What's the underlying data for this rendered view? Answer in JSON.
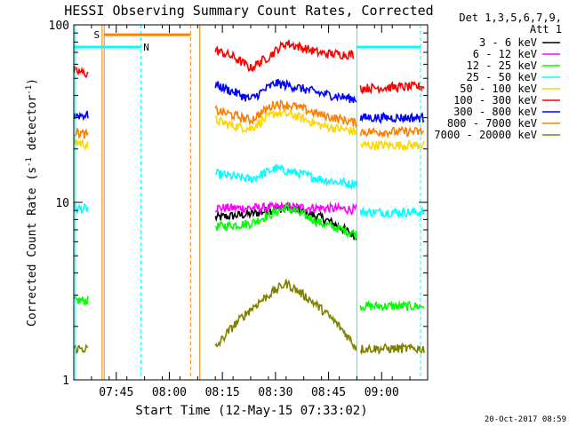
{
  "chart_data": {
    "type": "line",
    "title": "HESSI Observing Summary Count Rates, Corrected",
    "xlabel": "Start Time (12-May-15 07:33:02)",
    "ylabel": "Corrected Count Rate (s⁻¹ detector⁻¹)",
    "ylabel_parts": [
      "Corrected Count Rate (s",
      "-1",
      " detector",
      "-1",
      ")"
    ],
    "yscale": "log",
    "ylim": [
      1,
      100
    ],
    "xlim_minutes": [
      0,
      100
    ],
    "x_ticks": [
      {
        "minute": 12,
        "label": "07:45"
      },
      {
        "minute": 27,
        "label": "08:00"
      },
      {
        "minute": 42,
        "label": "08:15"
      },
      {
        "minute": 57,
        "label": "08:30"
      },
      {
        "minute": 72,
        "label": "08:45"
      },
      {
        "minute": 87,
        "label": "09:00"
      }
    ],
    "y_ticks": [
      {
        "value": 1,
        "label": "1"
      },
      {
        "value": 10,
        "label": "10"
      },
      {
        "value": 100,
        "label": "100"
      }
    ],
    "grid": false,
    "legend": {
      "placement": "right",
      "header": [
        "Det 1,3,5,6,7,9,",
        "Att 1"
      ]
    },
    "series": [
      {
        "name": "3 - 6 keV",
        "color": "#000000",
        "segments": [
          {
            "x": [
              40,
              50,
              60,
              65,
              70,
              80
            ],
            "y": [
              8.2,
              8.6,
              9.4,
              8.8,
              8.2,
              6.4
            ]
          }
        ]
      },
      {
        "name": "6 - 12 keV",
        "color": "#ff00ff",
        "segments": [
          {
            "x": [
              40,
              50,
              60,
              70,
              80
            ],
            "y": [
              9.3,
              9.3,
              9.4,
              9.3,
              9.1
            ]
          }
        ]
      },
      {
        "name": "12 - 25 keV",
        "color": "#00ff00",
        "segments": [
          {
            "x": [
              0,
              4
            ],
            "y": [
              2.8,
              2.8
            ]
          },
          {
            "x": [
              40,
              50,
              60,
              65,
              70,
              80
            ],
            "y": [
              7.3,
              7.6,
              9.3,
              8.5,
              7.6,
              6.6
            ]
          },
          {
            "x": [
              81,
              99
            ],
            "y": [
              2.6,
              2.6
            ]
          }
        ]
      },
      {
        "name": "25 - 50 keV",
        "color": "#00ffff",
        "segments": [
          {
            "x": [
              0,
              4
            ],
            "y": [
              9.2,
              9.2
            ]
          },
          {
            "x": [
              40,
              45,
              50,
              57,
              62,
              70,
              78,
              80
            ],
            "y": [
              14.5,
              14.0,
              13.5,
              15.5,
              14.8,
              13.5,
              12.7,
              13.0
            ]
          },
          {
            "x": [
              81,
              99
            ],
            "y": [
              8.8,
              8.8
            ]
          }
        ]
      },
      {
        "name": "50 - 100 keV",
        "color": "#ffd700",
        "segments": [
          {
            "x": [
              0,
              4
            ],
            "y": [
              22,
              21
            ]
          },
          {
            "x": [
              40,
              45,
              50,
              57,
              62,
              70,
              80
            ],
            "y": [
              29,
              27,
              26,
              32,
              31,
              27,
              25
            ]
          },
          {
            "x": [
              81,
              99
            ],
            "y": [
              21,
              21
            ]
          }
        ]
      },
      {
        "name": "100 - 300 keV",
        "color": "#ff0000",
        "segments": [
          {
            "x": [
              0,
              4
            ],
            "y": [
              55,
              53
            ]
          },
          {
            "x": [
              40,
              45,
              50,
              55,
              60,
              65,
              70,
              79
            ],
            "y": [
              72,
              66,
              57,
              66,
              79,
              74,
              69,
              68
            ]
          },
          {
            "x": [
              81,
              99
            ],
            "y": [
              44,
              45
            ]
          }
        ]
      },
      {
        "name": "300 - 800 keV",
        "color": "#0000ff",
        "segments": [
          {
            "x": [
              0,
              4
            ],
            "y": [
              31,
              31
            ]
          },
          {
            "x": [
              40,
              45,
              50,
              57,
              62,
              70,
              80
            ],
            "y": [
              46,
              42,
              38,
              47,
              45,
              41,
              38
            ]
          },
          {
            "x": [
              81,
              99
            ],
            "y": [
              30,
              30
            ]
          }
        ]
      },
      {
        "name": "800 - 7000 keV",
        "color": "#ff8000",
        "segments": [
          {
            "x": [
              0,
              4
            ],
            "y": [
              25,
              24
            ]
          },
          {
            "x": [
              40,
              45,
              50,
              57,
              62,
              70,
              80
            ],
            "y": [
              33,
              31,
              29,
              36,
              35,
              31,
              28
            ]
          },
          {
            "x": [
              81,
              99
            ],
            "y": [
              25,
              25
            ]
          }
        ]
      },
      {
        "name": "7000 - 20000 keV",
        "color": "#808000",
        "segments": [
          {
            "x": [
              0,
              4
            ],
            "y": [
              1.5,
              1.5
            ]
          },
          {
            "x": [
              40,
              50,
              55,
              60,
              65,
              70,
              80
            ],
            "y": [
              1.5,
              2.5,
              3.0,
              3.5,
              3.0,
              2.5,
              1.5
            ]
          },
          {
            "x": [
              81,
              99
            ],
            "y": [
              1.5,
              1.5
            ]
          }
        ]
      }
    ],
    "event_lines": [
      {
        "minute": 0.5,
        "color": "#00ffff",
        "style": "solid"
      },
      {
        "minute": 8,
        "color": "#ff8000",
        "style": "solid"
      },
      {
        "minute": 8.6,
        "color": "#ff8000",
        "style": "solid"
      },
      {
        "minute": 19,
        "color": "#00ffff",
        "style": "dashed"
      },
      {
        "minute": 33,
        "color": "#ff8000",
        "style": "dashed"
      },
      {
        "minute": 35.6,
        "color": "#ff8000",
        "style": "solid"
      },
      {
        "minute": 80,
        "color": "#00ffff",
        "style": "solid"
      },
      {
        "minute": 98,
        "color": "#00ffff",
        "style": "dashed"
      }
    ],
    "intervals": [
      {
        "label": "S",
        "color": "#ff8000",
        "start": 8.6,
        "end": 33,
        "value": 88,
        "label_minute": 6.5
      },
      {
        "label": "N",
        "color": "#00ffff",
        "start": 0,
        "end": 19,
        "value": 75,
        "label_minute": 20.5
      },
      {
        "label": "",
        "color": "#00ffff",
        "start": 80,
        "end": 98,
        "value": 75,
        "label_minute": 80
      }
    ],
    "timestamp": "20-Oct-2017 08:59"
  }
}
